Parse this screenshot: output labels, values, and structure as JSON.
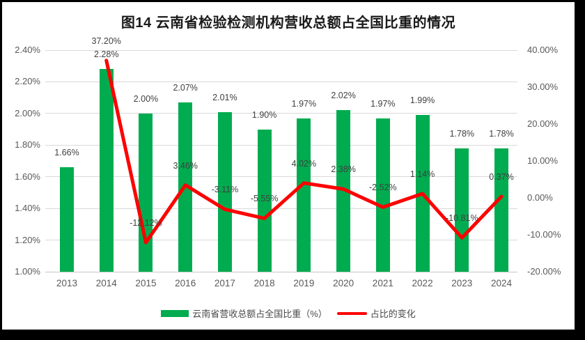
{
  "title": "图14 云南省检验检测机构营收总额占全国比重的情况",
  "legend": {
    "bar_label": "云南省营收总额占全国比重（%）",
    "line_label": "占比的变化"
  },
  "colors": {
    "bar": "#00AC4F",
    "line": "#FE0000",
    "grid": "#D9D9D9",
    "axis_text": "#595959",
    "label_text": "#404040",
    "title_text": "#1A1A1A",
    "border": "#000000"
  },
  "chart_data": {
    "type": "combo",
    "grid": true,
    "legend_position": "bottom",
    "categories": [
      "2013",
      "2014",
      "2015",
      "2016",
      "2017",
      "2018",
      "2019",
      "2020",
      "2021",
      "2022",
      "2023",
      "2024"
    ],
    "left_axis": {
      "min": 1.0,
      "max": 2.4,
      "ticks": [
        "2.40%",
        "2.20%",
        "2.00%",
        "1.80%",
        "1.60%",
        "1.40%",
        "1.20%",
        "1.00%"
      ]
    },
    "right_axis": {
      "min": -20,
      "max": 40,
      "ticks": [
        "40.00%",
        "30.00%",
        "20.00%",
        "10.00%",
        "0.00%",
        "-10.00%",
        "-20.00%"
      ]
    },
    "series": [
      {
        "name": "云南省营收总额占全国比重（%）",
        "type": "bar",
        "axis": "left",
        "values": [
          1.66,
          2.28,
          2.0,
          2.07,
          2.01,
          1.9,
          1.97,
          2.02,
          1.97,
          1.99,
          1.78,
          1.78
        ],
        "labels": [
          "1.66%",
          "2.28%",
          "2.00%",
          "2.07%",
          "2.01%",
          "1.90%",
          "1.97%",
          "2.02%",
          "1.97%",
          "1.99%",
          "1.78%",
          "1.78%"
        ]
      },
      {
        "name": "占比的变化",
        "type": "line",
        "axis": "right",
        "values": [
          null,
          37.2,
          -12.12,
          3.46,
          -3.11,
          -5.55,
          4.02,
          2.38,
          -2.52,
          1.14,
          -10.81,
          0.37
        ],
        "labels": [
          null,
          "37.20%",
          "-12.12%",
          "3.46%",
          "-3.11%",
          "-5.55%",
          "4.02%",
          "2.38%",
          "-2.52%",
          "1.14%",
          "-10.81%",
          "0.37%"
        ]
      }
    ]
  }
}
